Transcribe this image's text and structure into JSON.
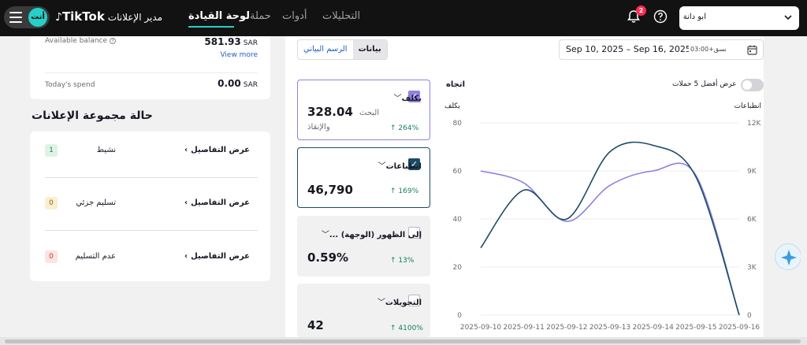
{
  "header": {
    "brand_name": "TikTok",
    "brand_sub": "مدير الإعلانات",
    "avatar_text": "أنت",
    "nav": [
      {
        "label": "لوحة القيادة"
      },
      {
        "label": "حملة"
      },
      {
        "label": "أدوات"
      },
      {
        "label": "التحليلات"
      }
    ],
    "notifications_count": "2",
    "account_name": "ابو دانة",
    "colors": {
      "bar": "#121212",
      "accent": "#25d0c8",
      "badge": "#fe2c55"
    }
  },
  "balance": {
    "available_label": "Available balance",
    "available_value": "581.93",
    "currency": "SAR",
    "view_more": "View more",
    "spend_label": "Today's spend",
    "spend_value": "0.00",
    "spend_currency": "SAR"
  },
  "ad_group_status": {
    "title": "حالة مجموعة الإعلانات",
    "details_label": "عرض التفاصيل",
    "rows": [
      {
        "label": "نشيط",
        "count": "1",
        "color": "#dff3e4",
        "text_color": "#18805a"
      },
      {
        "label": "تسليم جزئي",
        "count": "0",
        "color": "#fbefd2",
        "text_color": "#8a6300"
      },
      {
        "label": "عدم التسليم",
        "count": "0",
        "color": "#fde3e1",
        "text_color": "#c0392b"
      }
    ]
  },
  "view_toggle": {
    "data_label": "بيانات",
    "chart_label": "الرسم البياني"
  },
  "date_range": {
    "dates": "Sep 10, 2025 – Sep 16, 2025",
    "timezone": "نسق+03:00"
  },
  "metrics": [
    {
      "name": "يكلف",
      "value": "328.04",
      "sub1": "البحث",
      "sub2": "والإنقاذ",
      "change": "↑ 264%",
      "checked": true,
      "color": "#8c83e0"
    },
    {
      "name": "انطباعات",
      "value": "46,790",
      "change": "↑ 169%",
      "checked": true,
      "color": "#1c4b66"
    },
    {
      "name": "... إلى الظهور (الوجهة)",
      "value": "0.59%",
      "change": "↑ 13%",
      "checked": false
    },
    {
      "name": "التحويلات",
      "value": "42",
      "change": "↑ 4100%",
      "checked": false
    }
  ],
  "chart": {
    "title": "اتجاه",
    "top5_label": "عرض أفضل 5 حملات",
    "left_axis_title": "يكلف",
    "right_axis_title": "انطباعات"
  },
  "chart_data": {
    "type": "line",
    "title": "اتجاه",
    "x": [
      "2025-09-10",
      "2025-09-11",
      "2025-09-12",
      "2025-09-13",
      "2025-09-14",
      "2025-09-15",
      "2025-09-16"
    ],
    "ylabel": "يكلف",
    "ylim": [
      0,
      80
    ],
    "yticks": [
      "0",
      "20",
      "40",
      "60",
      "80"
    ],
    "y2label": "انطباعات",
    "y2lim": [
      0,
      12000
    ],
    "y2ticks": [
      "0",
      "3K",
      "6K",
      "9K",
      "12K"
    ],
    "grid": true,
    "series": [
      {
        "name": "يكلف",
        "axis": "left",
        "color": "#8c83e0",
        "values": [
          60,
          55,
          39,
          54,
          60,
          58,
          0
        ]
      },
      {
        "name": "انطباعات",
        "axis": "right",
        "color": "#1c4b66",
        "values": [
          4200,
          7800,
          6000,
          10200,
          10600,
          8600,
          0
        ]
      }
    ]
  }
}
